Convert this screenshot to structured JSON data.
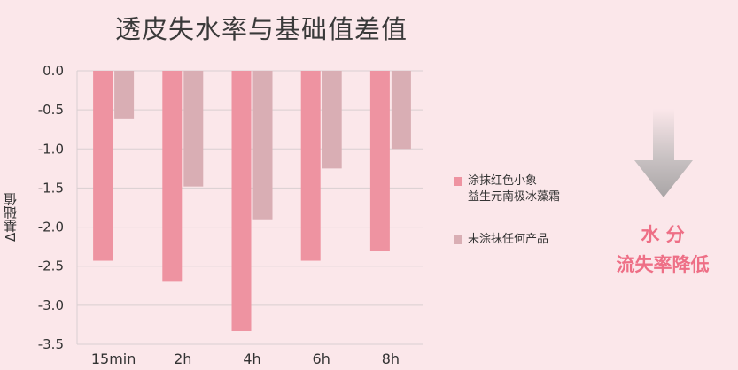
{
  "title": "透皮失水率与基础值差值",
  "legend": [
    {
      "lines": [
        "涂抹红色小象",
        "益生元南极冰藻霜"
      ],
      "color": "#ee93a1"
    },
    {
      "lines": [
        "未涂抹任何产品"
      ],
      "color": "#d9aeb4"
    }
  ],
  "side_note": {
    "line1": "水 分",
    "line2": "流失率降低",
    "arrow_icon": "down-arrow-icon"
  },
  "chart_data": {
    "type": "bar",
    "title": "透皮失水率与基础值差值",
    "xlabel": "",
    "ylabel": "Δ基础值",
    "categories": [
      "15min",
      "2h",
      "4h",
      "6h",
      "8h"
    ],
    "ylim": [
      -3.5,
      0.0
    ],
    "yticks": [
      "0.0",
      "-0.5",
      "-1.0",
      "-1.5",
      "-2.0",
      "-2.5",
      "-3.0",
      "-3.5"
    ],
    "grid": true,
    "legend_position": "right",
    "series": [
      {
        "name": "涂抹红色小象益生元南极冰藻霜",
        "color": "#ee93a1",
        "values": [
          -2.43,
          -2.7,
          -3.33,
          -2.43,
          -2.31
        ]
      },
      {
        "name": "未涂抹任何产品",
        "color": "#d9aeb4",
        "values": [
          -0.61,
          -1.48,
          -1.9,
          -1.25,
          -1.0
        ]
      }
    ]
  }
}
